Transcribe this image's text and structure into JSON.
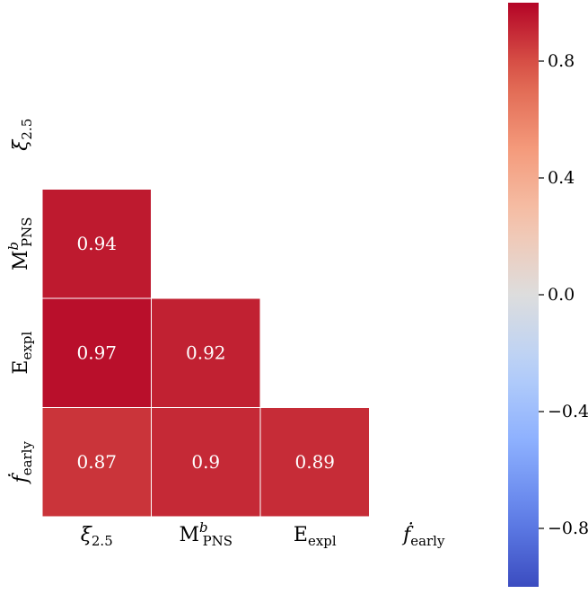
{
  "chart_data": {
    "type": "heatmap",
    "title": "",
    "variables": [
      {
        "base": "ξ",
        "sub": "2.5",
        "sup": ""
      },
      {
        "base": "M",
        "sub": "PNS",
        "sup": "b"
      },
      {
        "base": "E",
        "sub": "expl",
        "sup": ""
      },
      {
        "base": "ḟ",
        "sub": "early",
        "sup": ""
      }
    ],
    "mask": "upper-triangle-and-diagonal",
    "matrix": [
      [
        null,
        null,
        null,
        null
      ],
      [
        0.94,
        null,
        null,
        null
      ],
      [
        0.97,
        0.92,
        null,
        null
      ],
      [
        0.87,
        0.9,
        0.89,
        null
      ]
    ],
    "cell_labels": [
      [
        null,
        null,
        null,
        null
      ],
      [
        "0.94",
        null,
        null,
        null
      ],
      [
        "0.97",
        "0.92",
        null,
        null
      ],
      [
        "0.87",
        "0.9",
        "0.89",
        null
      ]
    ],
    "colorbar": {
      "colormap": "coolwarm",
      "vmin": -1.0,
      "vmax": 1.0,
      "ticks": [
        0.8,
        0.4,
        0.0,
        -0.4,
        -0.8
      ],
      "tick_labels": [
        "0.8",
        "0.4",
        "0.0",
        "−0.4",
        "−0.8"
      ]
    },
    "colors": {
      "cell_border": "#ffffff",
      "cell_text": "#ffffff"
    }
  }
}
